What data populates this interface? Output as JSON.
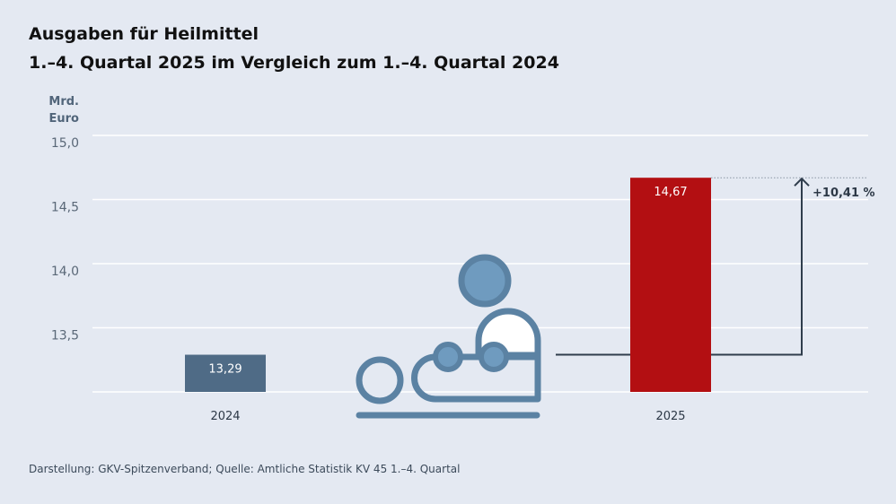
{
  "title": "Ausgaben für Heilmittel",
  "subtitle": "1.–4. Quartal 2025 im Vergleich zum 1.–4. Quartal 2024",
  "footer": "Darstellung: GKV-Spitzenverband; Quelle: Amtliche Statistik KV 45 1.–4. Quartal",
  "chart_data": {
    "type": "bar",
    "title": "Ausgaben für Heilmittel",
    "subtitle": "1.–4. Quartal 2025 im Vergleich zum 1.–4. Quartal 2024",
    "ylabel": "Mrd. Euro",
    "ylabel_lines": [
      "Mrd.",
      "Euro"
    ],
    "ylim": [
      13.0,
      15.0
    ],
    "yticks": [
      13.5,
      14.0,
      14.5,
      15.0
    ],
    "ytick_labels": [
      "13,5",
      "14,0",
      "14,5",
      "15,0"
    ],
    "grid": true,
    "categories": [
      "2024",
      "2025"
    ],
    "values": [
      13.29,
      14.67
    ],
    "data_labels": [
      "13,29",
      "14,67"
    ],
    "colors": [
      "#4f6b86",
      "#b30f12"
    ],
    "annotation": "+10,41 %",
    "icon": "physiotherapy-person-icon",
    "icon_color": "#5b82a3"
  }
}
